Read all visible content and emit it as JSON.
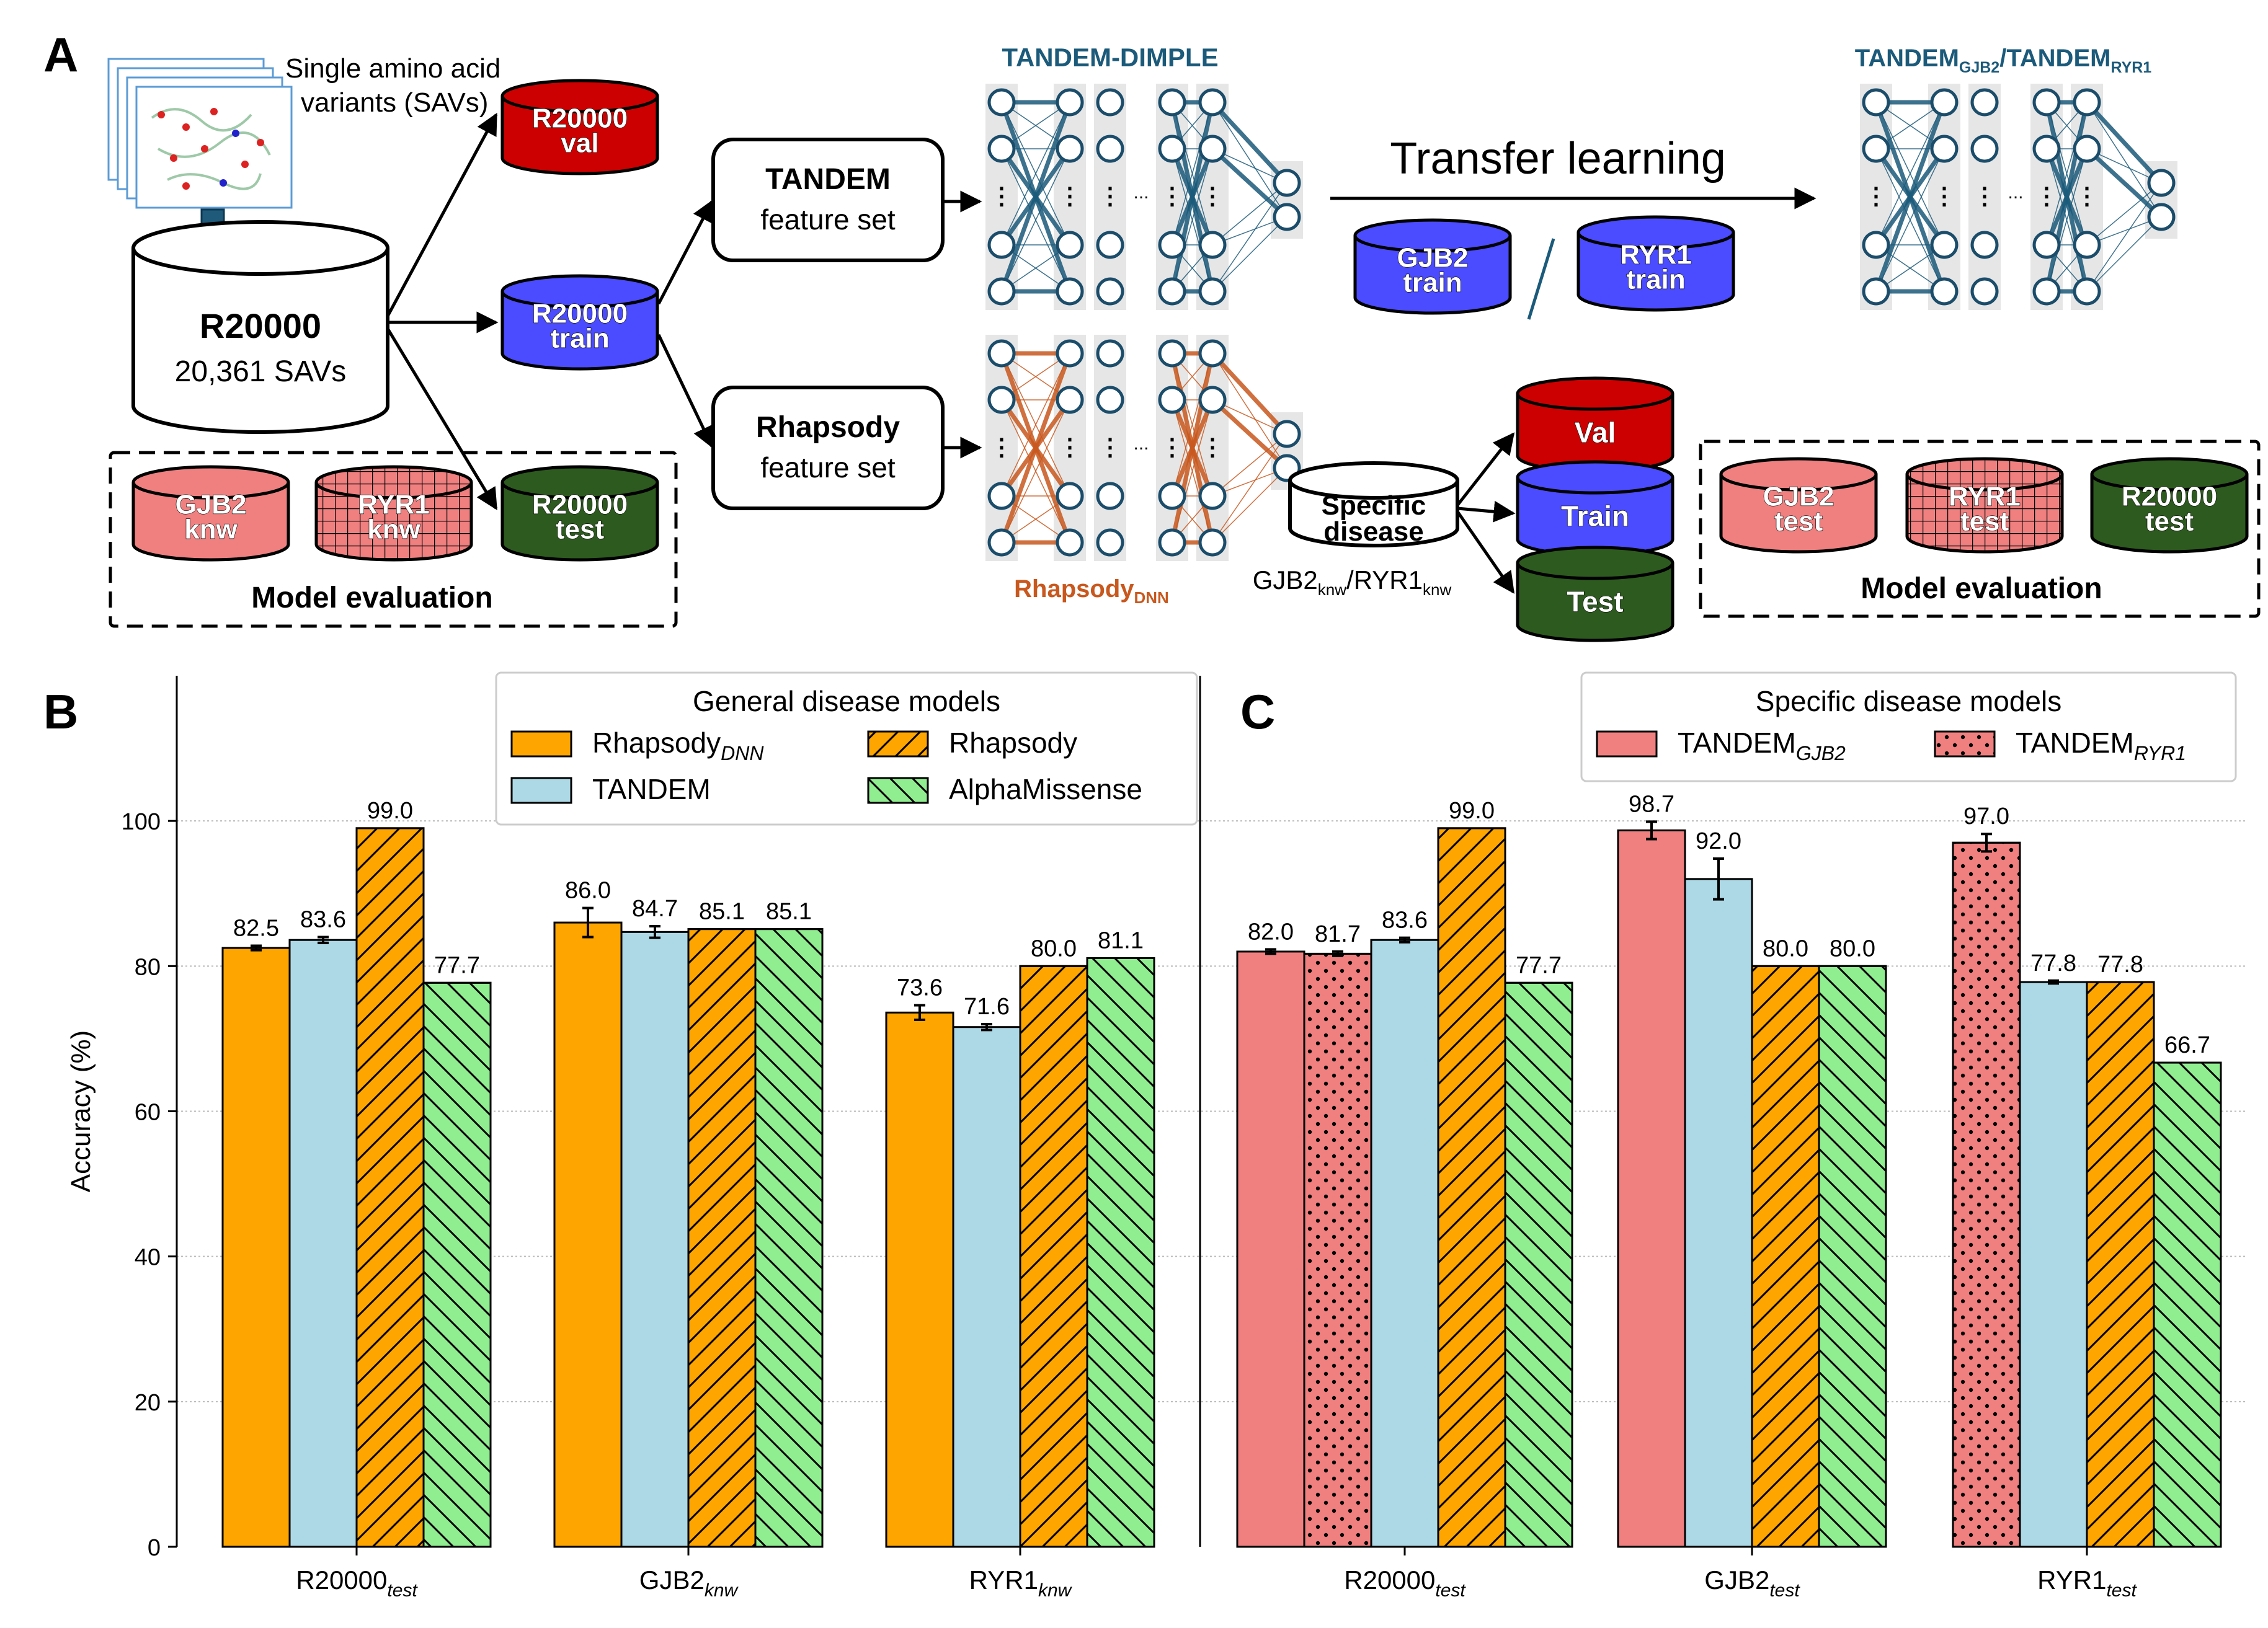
{
  "panel_labels": {
    "a": "A",
    "b": "B",
    "c": "C"
  },
  "schematic": {
    "sav_label_line1": "Single amino acid",
    "sav_label_line2": "variants (SAVs)",
    "r20000_title": "R20000",
    "r20000_count": "20,361 SAVs",
    "db_r20000_val": [
      "R20000",
      "val"
    ],
    "db_r20000_train": [
      "R20000",
      "train"
    ],
    "db_r20000_test": [
      "R20000",
      "test"
    ],
    "db_gjb2_knw": [
      "GJB2",
      "knw"
    ],
    "db_ryr1_knw": [
      "RYR1",
      "knw"
    ],
    "model_eval_left": "Model evaluation",
    "tandem_fs": [
      "TANDEM",
      "feature set"
    ],
    "rhapsody_fs": [
      "Rhapsody",
      "feature set"
    ],
    "tandem_dimple": "TANDEM-DIMPLE",
    "rhapsody_dnn": "Rhapsody",
    "rhapsody_dnn_sub": "DNN",
    "transfer_learning": "Transfer learning",
    "db_gjb2_train": [
      "GJB2",
      "train"
    ],
    "db_ryr1_train": [
      "RYR1",
      "train"
    ],
    "tandem_gjb2_ryr1": "TANDEM",
    "tandem_gjb2_sub": "GJB2",
    "tandem_slash": "/TANDEM",
    "tandem_ryr1_sub": "RYR1",
    "specific_disease": [
      "Specific",
      "disease"
    ],
    "db_val": "Val",
    "db_train": "Train",
    "db_test": "Test",
    "gjb2_knw_label": "GJB2",
    "knw_sub": "knw",
    "ryr1_knw_label": "/RYR1",
    "db_gjb2_test": [
      "GJB2",
      "test"
    ],
    "db_ryr1_test": [
      "RYR1",
      "test"
    ],
    "db_r20000_test_right": [
      "R20000",
      "test"
    ],
    "model_eval_right": "Model evaluation"
  },
  "colors": {
    "orange": "#FFA500",
    "lightblue": "#ADD8E6",
    "lightgreen": "#90EE90",
    "pink": "#F08080",
    "red": "#CC0000",
    "blue": "#4B4BFF",
    "darkgreen": "#2D5A1E",
    "teal": "#1B5A7A",
    "rust": "#C8581E"
  },
  "chart_data": [
    {
      "type": "bar",
      "panel": "B",
      "ylabel": "Accuracy (%)",
      "ylim": [
        0,
        120
      ],
      "yticks": [
        0,
        20,
        40,
        60,
        80,
        100
      ],
      "legend_title": "General disease models",
      "categories": [
        {
          "base": "R20000",
          "sub": "test"
        },
        {
          "base": "GJB2",
          "sub": "knw"
        },
        {
          "base": "RYR1",
          "sub": "knw"
        }
      ],
      "series": [
        {
          "name": "Rhapsody",
          "name_sub": "DNN",
          "fill": "orange",
          "pattern": "none",
          "values": [
            82.5,
            86.0,
            73.6
          ],
          "labels": [
            "82.5",
            "86.0",
            "73.6"
          ],
          "err": [
            0.3,
            2.0,
            1.0
          ]
        },
        {
          "name": "TANDEM",
          "name_sub": "",
          "fill": "lightblue",
          "pattern": "none",
          "values": [
            83.6,
            84.7,
            71.6
          ],
          "labels": [
            "83.6",
            "84.7",
            "71.6"
          ],
          "err": [
            0.4,
            0.8,
            0.4
          ]
        },
        {
          "name": "Rhapsody",
          "name_sub": "",
          "fill": "orange",
          "pattern": "fwd",
          "values": [
            99.0,
            85.1,
            80.0
          ],
          "labels": [
            "99.0",
            "85.1",
            "80.0"
          ],
          "err": [
            0,
            0,
            0
          ]
        },
        {
          "name": "AlphaMissense",
          "name_sub": "",
          "fill": "lightgreen",
          "pattern": "back",
          "values": [
            77.7,
            85.1,
            81.1
          ],
          "labels": [
            "77.7",
            "85.1",
            "81.1"
          ],
          "err": [
            0,
            0,
            0
          ]
        }
      ],
      "grid": true,
      "legend_position": "top-right"
    },
    {
      "type": "bar",
      "panel": "C",
      "legend_title": "Specific disease models",
      "categories": [
        {
          "base": "R20000",
          "sub": "test"
        },
        {
          "base": "GJB2",
          "sub": "test"
        },
        {
          "base": "RYR1",
          "sub": "test"
        }
      ],
      "series": [
        {
          "name": "TANDEM",
          "name_sub": "GJB2",
          "fill": "pink",
          "pattern": "none",
          "values": [
            82.0,
            98.7,
            null
          ],
          "labels": [
            "82.0",
            "98.7",
            ""
          ],
          "err": [
            0.3,
            1.2,
            0
          ]
        },
        {
          "name": "TANDEM",
          "name_sub": "RYR1",
          "fill": "pink",
          "pattern": "dots",
          "values": [
            81.7,
            null,
            97.0
          ],
          "labels": [
            "81.7",
            "",
            "97.0"
          ],
          "err": [
            0.3,
            0,
            1.2
          ]
        },
        {
          "name": "TANDEM",
          "name_sub": "",
          "fill": "lightblue",
          "pattern": "none",
          "values": [
            83.6,
            92.0,
            77.8
          ],
          "labels": [
            "83.6",
            "92.0",
            "77.8"
          ],
          "err": [
            0.3,
            2.8,
            0.2
          ]
        },
        {
          "name": "Rhapsody",
          "name_sub": "",
          "fill": "orange",
          "pattern": "fwd",
          "values": [
            99.0,
            80.0,
            77.8
          ],
          "labels": [
            "99.0",
            "80.0",
            "77.8"
          ],
          "err": [
            0,
            0,
            0
          ]
        },
        {
          "name": "AlphaMissense",
          "name_sub": "",
          "fill": "lightgreen",
          "pattern": "back",
          "values": [
            77.7,
            80.0,
            66.7
          ],
          "labels": [
            "77.7",
            "80.0",
            "66.7"
          ],
          "err": [
            0,
            0,
            0
          ]
        }
      ],
      "grid": true,
      "legend_position": "top-right"
    }
  ]
}
